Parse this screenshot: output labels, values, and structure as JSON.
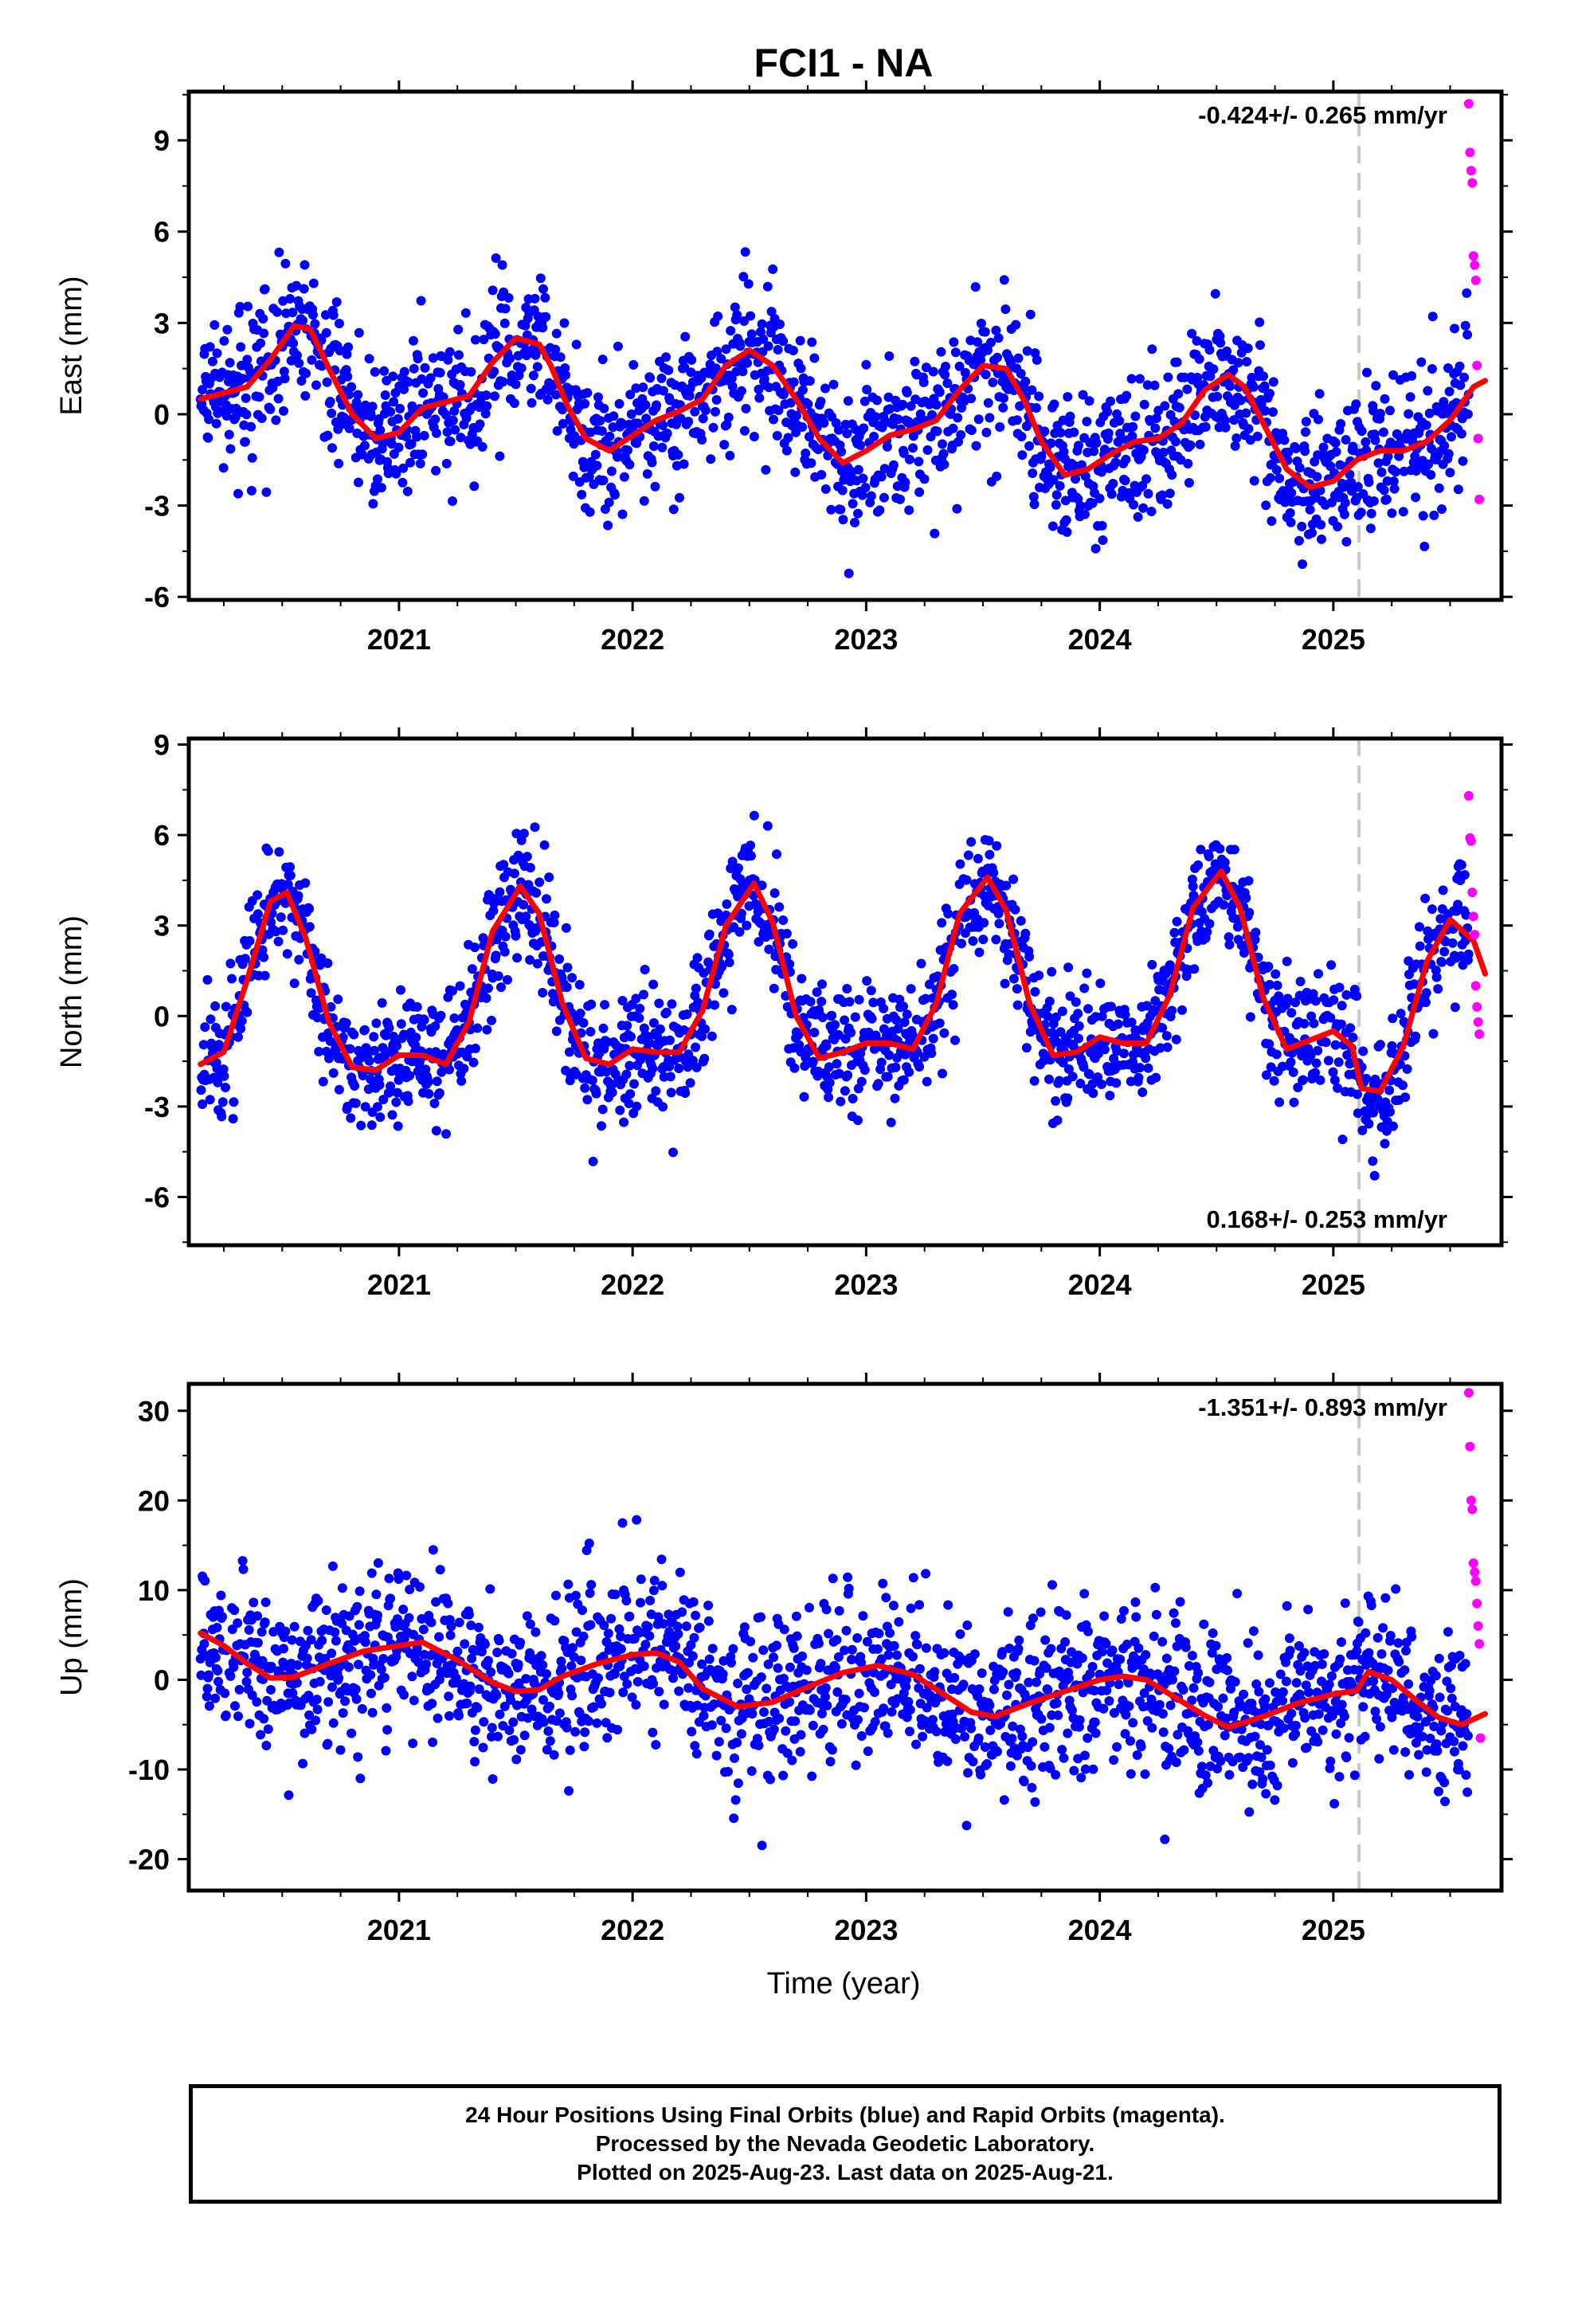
{
  "title": "FCI1 - NA",
  "xlabel": "Time (year)",
  "footer": {
    "line1": "24 Hour Positions Using Final Orbits (blue) and Rapid Orbits (magenta).",
    "line2": "Processed by the Nevada Geodetic Laboratory.",
    "line3": "Plotted on 2025-Aug-23. Last data on 2025-Aug-21."
  },
  "colors": {
    "final": "#0000ff",
    "rapid": "#ff00ff",
    "model": "#ff0000",
    "marker_line": "#c8c8c8",
    "axis": "#000000"
  },
  "chart_data": [
    {
      "type": "scatter",
      "ylabel": "East (mm)",
      "xlim": [
        2020.1,
        2025.72
      ],
      "ylim": [
        -6.1,
        10.6
      ],
      "yticks": [
        -6,
        -3,
        0,
        3,
        6,
        9
      ],
      "xticks": [
        2021,
        2022,
        2023,
        2024,
        2025
      ],
      "rate_label": "-0.424+/- 0.265 mm/yr",
      "rate_position": "top-right",
      "equipment_change": 2025.11,
      "model_series": {
        "name": "model",
        "x": [
          2020.15,
          2020.25,
          2020.35,
          2020.45,
          2020.55,
          2020.62,
          2020.7,
          2020.8,
          2020.9,
          2021.0,
          2021.1,
          2021.2,
          2021.3,
          2021.4,
          2021.5,
          2021.6,
          2021.65,
          2021.72,
          2021.8,
          2021.9,
          2022.0,
          2022.1,
          2022.2,
          2022.3,
          2022.4,
          2022.5,
          2022.6,
          2022.7,
          2022.8,
          2022.9,
          2023.0,
          2023.1,
          2023.2,
          2023.3,
          2023.4,
          2023.5,
          2023.6,
          2023.68,
          2023.75,
          2023.85,
          2023.95,
          2024.05,
          2024.15,
          2024.25,
          2024.35,
          2024.45,
          2024.55,
          2024.62,
          2024.7,
          2024.8,
          2024.9,
          2025.0,
          2025.1,
          2025.2,
          2025.3,
          2025.4,
          2025.5,
          2025.6,
          2025.65
        ],
        "y": [
          0.5,
          0.7,
          0.9,
          1.8,
          2.9,
          2.8,
          1.5,
          0.0,
          -0.8,
          -0.6,
          0.2,
          0.4,
          0.6,
          1.7,
          2.5,
          2.3,
          1.6,
          0.3,
          -0.8,
          -1.2,
          -0.7,
          -0.2,
          0.1,
          0.5,
          1.6,
          2.1,
          1.6,
          0.5,
          -0.8,
          -1.6,
          -1.2,
          -0.7,
          -0.5,
          -0.2,
          0.8,
          1.6,
          1.5,
          0.4,
          -0.9,
          -2.0,
          -1.8,
          -1.3,
          -0.9,
          -0.8,
          -0.3,
          0.8,
          1.3,
          0.9,
          -0.3,
          -1.8,
          -2.4,
          -2.2,
          -1.5,
          -1.2,
          -1.2,
          -0.9,
          -0.2,
          0.9,
          1.1
        ]
      },
      "final_params": {
        "baseline": [
          0.5,
          -0.45,
          5.3,
          2020.15
        ],
        "seasonal": 1.8,
        "noise": 1.2,
        "epochs": [
          2020.15,
          2025.58
        ]
      },
      "rapid_series": {
        "name": "rapid",
        "x": [
          2025.58,
          2025.585,
          2025.59,
          2025.595,
          2025.6,
          2025.605,
          2025.61,
          2025.615,
          2025.62,
          2025.625
        ],
        "y": [
          10.2,
          8.6,
          8.0,
          7.6,
          5.2,
          4.9,
          4.4,
          1.6,
          -0.8,
          -2.8
        ]
      }
    },
    {
      "type": "scatter",
      "ylabel": "North (mm)",
      "xlim": [
        2020.1,
        2025.72
      ],
      "ylim": [
        -7.6,
        9.2
      ],
      "yticks": [
        -6,
        -3,
        0,
        3,
        6,
        9
      ],
      "xticks": [
        2021,
        2022,
        2023,
        2024,
        2025
      ],
      "rate_label": "0.168+/- 0.253 mm/yr",
      "rate_position": "bottom-right",
      "equipment_change": 2025.11,
      "model_series": {
        "name": "model",
        "x": [
          2020.15,
          2020.25,
          2020.35,
          2020.45,
          2020.52,
          2020.6,
          2020.7,
          2020.8,
          2020.9,
          2021.0,
          2021.1,
          2021.2,
          2021.3,
          2021.4,
          2021.52,
          2021.6,
          2021.7,
          2021.8,
          2021.9,
          2022.0,
          2022.1,
          2022.2,
          2022.3,
          2022.4,
          2022.52,
          2022.6,
          2022.7,
          2022.8,
          2022.9,
          2023.0,
          2023.1,
          2023.2,
          2023.3,
          2023.4,
          2023.52,
          2023.6,
          2023.7,
          2023.8,
          2023.9,
          2024.0,
          2024.1,
          2024.2,
          2024.3,
          2024.4,
          2024.52,
          2024.6,
          2024.7,
          2024.8,
          2024.9,
          2025.0,
          2025.08,
          2025.12,
          2025.2,
          2025.3,
          2025.4,
          2025.5,
          2025.6,
          2025.65
        ],
        "y": [
          -1.6,
          -1.2,
          1.2,
          3.8,
          4.1,
          2.6,
          -0.2,
          -1.7,
          -1.8,
          -1.3,
          -1.3,
          -1.6,
          -0.2,
          2.8,
          4.3,
          3.4,
          0.4,
          -1.4,
          -1.6,
          -1.1,
          -1.2,
          -1.2,
          0.2,
          3.0,
          4.4,
          3.1,
          0.0,
          -1.4,
          -1.2,
          -0.9,
          -0.9,
          -1.1,
          0.4,
          3.4,
          4.6,
          3.5,
          0.4,
          -1.3,
          -1.2,
          -0.7,
          -0.9,
          -0.9,
          0.7,
          3.6,
          4.8,
          3.6,
          0.6,
          -1.1,
          -0.8,
          -0.5,
          -1.0,
          -2.4,
          -2.5,
          -1.0,
          1.8,
          3.2,
          2.5,
          1.4
        ]
      },
      "final_params": {
        "baseline": [
          -0.4,
          0.17,
          4.0,
          2020.53
        ],
        "seasonal": 0.0,
        "noise": 1.05,
        "epochs": [
          2020.15,
          2025.58
        ]
      },
      "rapid_series": {
        "name": "rapid",
        "x": [
          2025.58,
          2025.585,
          2025.59,
          2025.595,
          2025.6,
          2025.605,
          2025.61,
          2025.615,
          2025.62,
          2025.625
        ],
        "y": [
          7.3,
          5.9,
          5.8,
          4.1,
          3.3,
          2.7,
          1.0,
          0.3,
          -0.2,
          -0.6
        ]
      }
    },
    {
      "type": "scatter",
      "ylabel": "Up (mm)",
      "xlim": [
        2020.1,
        2025.72
      ],
      "ylim": [
        -23.5,
        33.0
      ],
      "yticks": [
        -20,
        -10,
        0,
        10,
        20,
        30
      ],
      "xticks": [
        2021,
        2022,
        2023,
        2024,
        2025
      ],
      "rate_label": "-1.351+/- 0.893 mm/yr",
      "rate_position": "top-right",
      "equipment_change": 2025.11,
      "model_series": {
        "name": "model",
        "x": [
          2020.15,
          2020.25,
          2020.35,
          2020.45,
          2020.55,
          2020.7,
          2020.85,
          2021.0,
          2021.1,
          2021.25,
          2021.4,
          2021.5,
          2021.6,
          2021.7,
          2021.85,
          2022.0,
          2022.1,
          2022.2,
          2022.3,
          2022.45,
          2022.6,
          2022.75,
          2022.9,
          2023.05,
          2023.2,
          2023.35,
          2023.45,
          2023.55,
          2023.7,
          2023.85,
          2024.0,
          2024.1,
          2024.2,
          2024.3,
          2024.45,
          2024.55,
          2024.7,
          2024.85,
          2025.0,
          2025.1,
          2025.15,
          2025.25,
          2025.35,
          2025.45,
          2025.55,
          2025.65
        ],
        "y": [
          5.2,
          3.8,
          1.8,
          0.2,
          0.3,
          1.8,
          3.2,
          3.8,
          4.2,
          2.2,
          -0.3,
          -1.3,
          -1.1,
          0.4,
          1.8,
          2.8,
          3.0,
          2.0,
          -1.0,
          -3.0,
          -2.5,
          -0.8,
          0.8,
          1.6,
          0.6,
          -1.9,
          -3.6,
          -4.1,
          -2.6,
          -1.3,
          0.0,
          0.4,
          0.0,
          -1.6,
          -4.0,
          -5.3,
          -4.1,
          -2.6,
          -1.6,
          -1.2,
          0.9,
          0.0,
          -2.2,
          -4.2,
          -5.0,
          -3.8
        ]
      },
      "final_params": {
        "baseline": [
          3.5,
          -1.35,
          0.0,
          2020.0
        ],
        "seasonal": 2.6,
        "noise": 4.6,
        "epochs": [
          2020.15,
          2025.58
        ]
      },
      "rapid_series": {
        "name": "rapid",
        "x": [
          2025.58,
          2025.585,
          2025.59,
          2025.595,
          2025.6,
          2025.605,
          2025.61,
          2025.615,
          2025.62,
          2025.625,
          2025.63
        ],
        "y": [
          32.0,
          26.0,
          20.0,
          19.0,
          13.0,
          12.0,
          11.0,
          8.5,
          6.0,
          4.0,
          -6.5
        ]
      }
    }
  ]
}
